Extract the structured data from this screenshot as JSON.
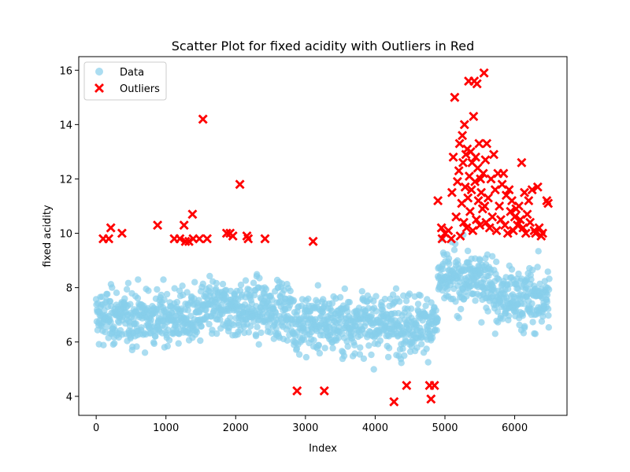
{
  "chart_data": {
    "type": "scatter",
    "title": "Scatter Plot for fixed acidity with Outliers in Red",
    "xlabel": "Index",
    "ylabel": "fixed acidity",
    "xlim": [
      -250,
      6750
    ],
    "ylim": [
      3.3,
      16.5
    ],
    "xticks": [
      0,
      1000,
      2000,
      3000,
      4000,
      5000,
      6000
    ],
    "yticks": [
      4,
      6,
      8,
      10,
      12,
      14,
      16
    ],
    "grid": false,
    "legend": {
      "placement": "top-left",
      "entries": [
        "Data",
        "Outliers"
      ]
    },
    "colors": {
      "data": "#87CEEB",
      "outliers": "#FF0000"
    },
    "series": [
      {
        "name": "Data",
        "marker": "circle",
        "summary": {
          "segments": [
            {
              "x_range": [
                0,
                1500
              ],
              "typical_range": [
                5.5,
                8.5
              ],
              "center": 6.9
            },
            {
              "x_range": [
                1500,
                2800
              ],
              "typical_range": [
                5.8,
                8.8
              ],
              "center": 7.2
            },
            {
              "x_range": [
                2800,
                4900
              ],
              "typical_range": [
                5.0,
                8.2
              ],
              "center": 6.7
            },
            {
              "x_range": [
                4900,
                5700
              ],
              "typical_range": [
                6.5,
                9.6
              ],
              "center": 8.3
            },
            {
              "x_range": [
                5700,
                6497
              ],
              "typical_range": [
                5.8,
                9.2
              ],
              "center": 7.6
            }
          ]
        }
      },
      {
        "name": "Outliers",
        "marker": "x",
        "points": [
          [
            100,
            9.8
          ],
          [
            180,
            9.8
          ],
          [
            210,
            10.2
          ],
          [
            370,
            10.0
          ],
          [
            880,
            10.3
          ],
          [
            1120,
            9.8
          ],
          [
            1200,
            9.8
          ],
          [
            1260,
            10.3
          ],
          [
            1280,
            9.7
          ],
          [
            1330,
            9.7
          ],
          [
            1380,
            10.7
          ],
          [
            1390,
            9.8
          ],
          [
            1480,
            9.8
          ],
          [
            1530,
            14.2
          ],
          [
            1590,
            9.8
          ],
          [
            1870,
            10.0
          ],
          [
            1920,
            10.0
          ],
          [
            1960,
            9.9
          ],
          [
            2060,
            11.8
          ],
          [
            2160,
            9.9
          ],
          [
            2180,
            9.8
          ],
          [
            2420,
            9.8
          ],
          [
            2880,
            4.2
          ],
          [
            3110,
            9.7
          ],
          [
            3270,
            4.2
          ],
          [
            4270,
            3.8
          ],
          [
            4450,
            4.4
          ],
          [
            4780,
            4.4
          ],
          [
            4800,
            3.9
          ],
          [
            4850,
            4.4
          ],
          [
            4900,
            11.2
          ],
          [
            4950,
            10.2
          ],
          [
            4960,
            9.8
          ],
          [
            5000,
            10.0
          ],
          [
            5050,
            10.1
          ],
          [
            5090,
            9.8
          ],
          [
            5100,
            11.5
          ],
          [
            5120,
            12.8
          ],
          [
            5140,
            15.0
          ],
          [
            5160,
            10.6
          ],
          [
            5180,
            11.9
          ],
          [
            5200,
            12.3
          ],
          [
            5210,
            13.3
          ],
          [
            5220,
            9.9
          ],
          [
            5240,
            11.1
          ],
          [
            5250,
            13.6
          ],
          [
            5260,
            12.6
          ],
          [
            5270,
            10.4
          ],
          [
            5280,
            14.0
          ],
          [
            5290,
            11.7
          ],
          [
            5300,
            12.9
          ],
          [
            5310,
            10.2
          ],
          [
            5320,
            13.1
          ],
          [
            5330,
            11.3
          ],
          [
            5340,
            15.6
          ],
          [
            5350,
            12.1
          ],
          [
            5360,
            10.8
          ],
          [
            5370,
            13.0
          ],
          [
            5380,
            11.6
          ],
          [
            5390,
            12.6
          ],
          [
            5400,
            10.1
          ],
          [
            5410,
            14.3
          ],
          [
            5420,
            15.6
          ],
          [
            5430,
            11.9
          ],
          [
            5440,
            12.8
          ],
          [
            5450,
            10.5
          ],
          [
            5460,
            15.5
          ],
          [
            5470,
            12.4
          ],
          [
            5480,
            11.2
          ],
          [
            5490,
            13.3
          ],
          [
            5500,
            10.3
          ],
          [
            5510,
            12.0
          ],
          [
            5520,
            11.5
          ],
          [
            5540,
            10.9
          ],
          [
            5550,
            12.2
          ],
          [
            5560,
            15.9
          ],
          [
            5570,
            11.0
          ],
          [
            5580,
            12.7
          ],
          [
            5590,
            10.4
          ],
          [
            5600,
            13.3
          ],
          [
            5620,
            11.3
          ],
          [
            5640,
            10.2
          ],
          [
            5660,
            12.0
          ],
          [
            5680,
            10.6
          ],
          [
            5700,
            12.9
          ],
          [
            5720,
            11.6
          ],
          [
            5740,
            10.1
          ],
          [
            5760,
            12.2
          ],
          [
            5780,
            11.0
          ],
          [
            5800,
            10.5
          ],
          [
            5820,
            11.8
          ],
          [
            5840,
            12.2
          ],
          [
            5860,
            10.3
          ],
          [
            5880,
            11.4
          ],
          [
            5900,
            10.0
          ],
          [
            5920,
            11.6
          ],
          [
            5940,
            10.8
          ],
          [
            5960,
            11.2
          ],
          [
            5980,
            10.1
          ],
          [
            6000,
            10.6
          ],
          [
            6020,
            10.9
          ],
          [
            6040,
            10.3
          ],
          [
            6060,
            11.0
          ],
          [
            6080,
            10.5
          ],
          [
            6100,
            12.6
          ],
          [
            6120,
            10.2
          ],
          [
            6140,
            11.5
          ],
          [
            6160,
            10.0
          ],
          [
            6180,
            10.7
          ],
          [
            6200,
            11.2
          ],
          [
            6220,
            10.4
          ],
          [
            6250,
            11.6
          ],
          [
            6280,
            10.1
          ],
          [
            6300,
            10.0
          ],
          [
            6330,
            11.7
          ],
          [
            6350,
            10.2
          ],
          [
            6380,
            9.9
          ],
          [
            6400,
            10.0
          ],
          [
            6460,
            11.2
          ],
          [
            6480,
            11.1
          ]
        ]
      }
    ]
  }
}
